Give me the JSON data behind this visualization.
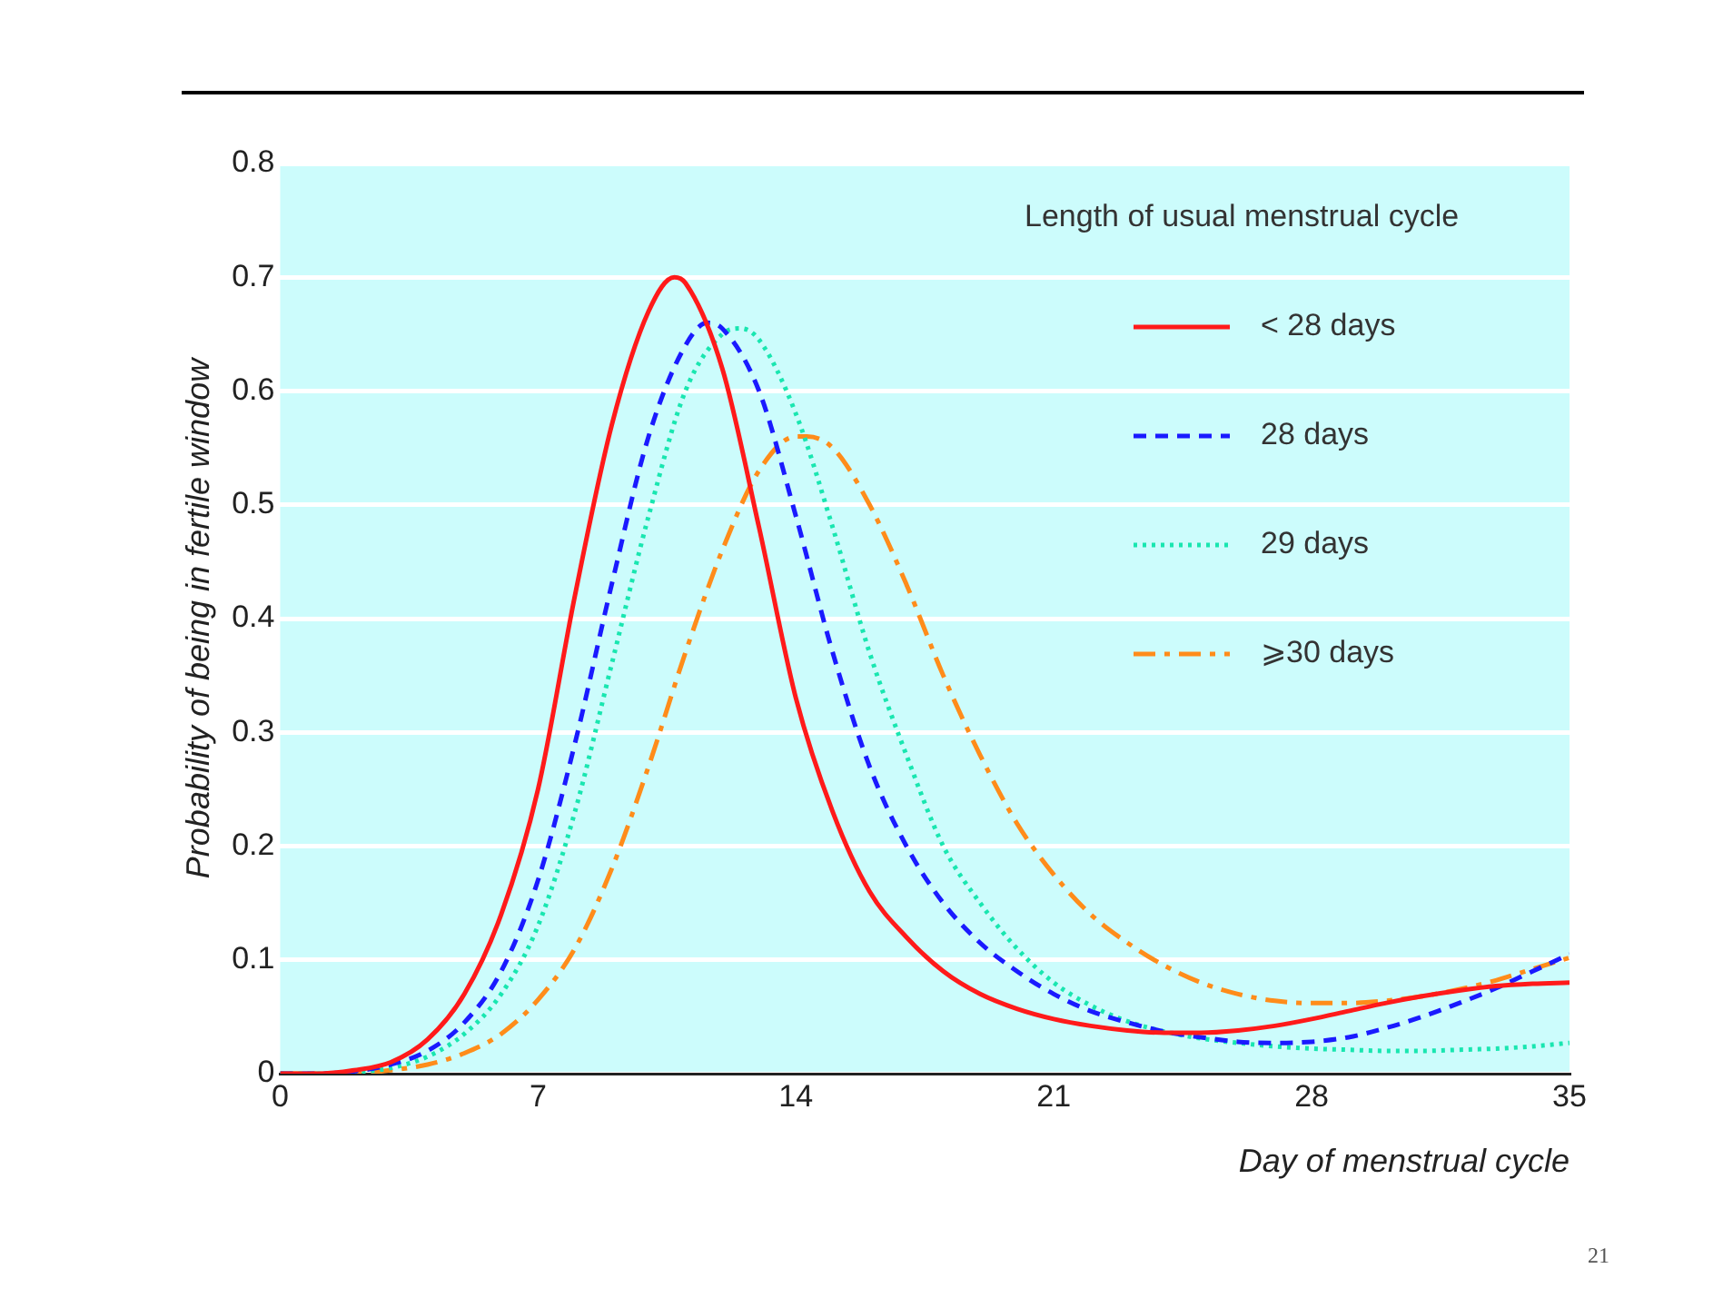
{
  "chart_data": {
    "type": "line",
    "xlabel": "Day of menstrual cycle",
    "ylabel": "Probability of being in fertile window",
    "legend_title": "Length of usual menstrual cycle",
    "legend": "top right",
    "grid": "y",
    "marker": "none",
    "xlim": [
      0,
      35
    ],
    "xticks": [
      0,
      7,
      14,
      21,
      28,
      35
    ],
    "ylim": [
      0,
      0.8
    ],
    "yticks": [
      0,
      0.1,
      0.2,
      0.3,
      0.4,
      0.5,
      0.6,
      0.7,
      0.8
    ],
    "annotations": [
      "21"
    ],
    "series": [
      {
        "name": "< 28 days",
        "color": "#ff1a1a",
        "line_style": "solid",
        "x": [
          0,
          1,
          2,
          3,
          4,
          5,
          6,
          7,
          8,
          9,
          10,
          10.7,
          11,
          12,
          13,
          14,
          15,
          16,
          17,
          18,
          19,
          20,
          21,
          22,
          23,
          24,
          25,
          26,
          27,
          28,
          29,
          30,
          31,
          32,
          33,
          34,
          35
        ],
        "values": [
          0,
          0,
          0.003,
          0.01,
          0.03,
          0.07,
          0.14,
          0.25,
          0.42,
          0.57,
          0.67,
          0.7,
          0.695,
          0.62,
          0.48,
          0.33,
          0.23,
          0.16,
          0.12,
          0.09,
          0.07,
          0.057,
          0.048,
          0.042,
          0.038,
          0.036,
          0.036,
          0.038,
          0.042,
          0.048,
          0.055,
          0.062,
          0.068,
          0.073,
          0.077,
          0.079,
          0.08
        ]
      },
      {
        "name": "28 days",
        "color": "#1a1aff",
        "line_style": "dashed",
        "x": [
          0,
          1,
          2,
          3,
          4,
          5,
          6,
          7,
          8,
          9,
          10,
          11,
          11.6,
          12,
          13,
          14,
          15,
          16,
          17,
          18,
          19,
          20,
          21,
          22,
          23,
          24,
          25,
          26,
          27,
          28,
          29,
          30,
          31,
          32,
          33,
          34,
          35
        ],
        "values": [
          0,
          0,
          0.002,
          0.008,
          0.02,
          0.045,
          0.09,
          0.17,
          0.29,
          0.43,
          0.56,
          0.64,
          0.66,
          0.655,
          0.6,
          0.49,
          0.37,
          0.27,
          0.2,
          0.15,
          0.115,
          0.09,
          0.07,
          0.055,
          0.045,
          0.037,
          0.032,
          0.028,
          0.027,
          0.028,
          0.032,
          0.04,
          0.05,
          0.062,
          0.075,
          0.09,
          0.105
        ]
      },
      {
        "name": "29 days",
        "color": "#19e6b0",
        "line_style": "dotted",
        "x": [
          0,
          1,
          2,
          3,
          4,
          5,
          6,
          7,
          8,
          9,
          10,
          11,
          12,
          12.5,
          13,
          14,
          15,
          16,
          17,
          18,
          19,
          20,
          21,
          22,
          23,
          24,
          25,
          26,
          27,
          28,
          29,
          30,
          31,
          32,
          33,
          34,
          35
        ],
        "values": [
          0,
          0,
          0.001,
          0.005,
          0.015,
          0.035,
          0.07,
          0.13,
          0.23,
          0.36,
          0.49,
          0.6,
          0.65,
          0.655,
          0.645,
          0.58,
          0.48,
          0.37,
          0.28,
          0.2,
          0.15,
          0.11,
          0.08,
          0.06,
          0.046,
          0.037,
          0.031,
          0.027,
          0.024,
          0.022,
          0.021,
          0.02,
          0.02,
          0.021,
          0.022,
          0.024,
          0.027
        ]
      },
      {
        "name": "⩾30 days",
        "color": "#ff8c1a",
        "line_style": "dashdot",
        "x": [
          0,
          1,
          2,
          3,
          4,
          5,
          6,
          7,
          8,
          9,
          10,
          11,
          12,
          13,
          14,
          14.3,
          15,
          16,
          17,
          18,
          19,
          20,
          21,
          22,
          23,
          24,
          25,
          26,
          27,
          28,
          29,
          30,
          31,
          32,
          33,
          34,
          35
        ],
        "values": [
          0,
          0,
          0,
          0.003,
          0.008,
          0.018,
          0.035,
          0.065,
          0.11,
          0.18,
          0.27,
          0.37,
          0.46,
          0.53,
          0.56,
          0.56,
          0.55,
          0.5,
          0.43,
          0.35,
          0.28,
          0.22,
          0.175,
          0.14,
          0.115,
          0.095,
          0.08,
          0.07,
          0.064,
          0.062,
          0.062,
          0.064,
          0.068,
          0.074,
          0.082,
          0.092,
          0.102
        ]
      }
    ]
  }
}
